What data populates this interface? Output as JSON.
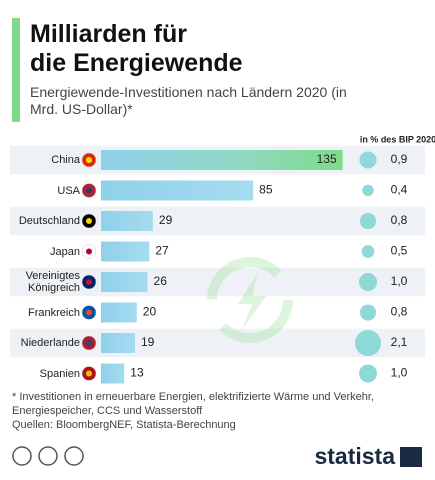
{
  "chart_data": {
    "type": "bar",
    "title": "Milliarden für\ndie Energiewende",
    "subtitle": "Energiewende-Investitionen nach Ländern 2020 (in Mrd. US-Dollar)*",
    "categories": [
      "China",
      "USA",
      "Deutschland",
      "Japan",
      "Vereinigtes Königreich",
      "Frankreich",
      "Niederlande",
      "Spanien"
    ],
    "series": [
      {
        "values": [
          135,
          85,
          29,
          27,
          26,
          20,
          19,
          13
        ],
        "color": "#8fd0ea"
      },
      {
        "name": "in % des BIP 2020",
        "values": [
          0.9,
          0.4,
          0.8,
          0.5,
          1.0,
          0.8,
          2.1,
          1.0
        ],
        "value_labels": [
          "0,9",
          "0,4",
          "0,8",
          "0,5",
          "1,0",
          "0,8",
          "2,1",
          "1,0"
        ],
        "color": "#8ed8d6"
      }
    ],
    "footnote": "* Investitionen in erneuerbare Energien, elektrifizierte Wärme und Verkehr, Energiespeicher, CCS und Wasserstoff",
    "source": "Quellen: BloombergNEF, Statista-Berechnung",
    "logo": "statista"
  }
}
